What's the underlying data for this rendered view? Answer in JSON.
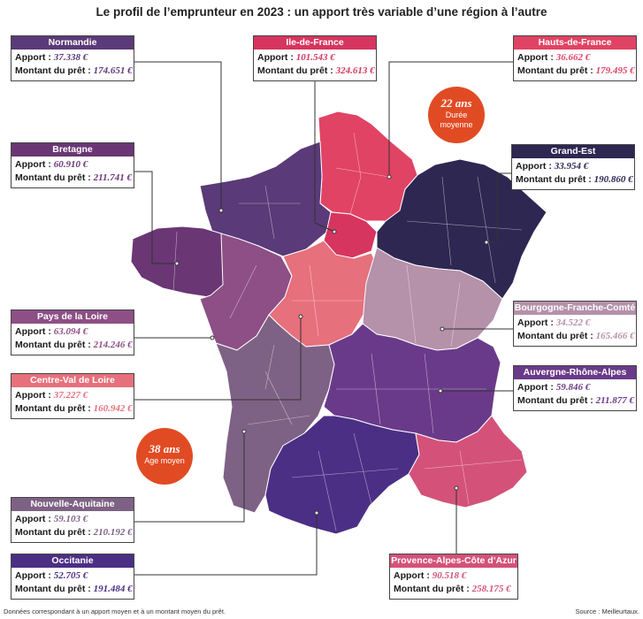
{
  "title": "Le profil de l’emprunteur en 2023 : un apport très variable d’une région à l’autre",
  "labels": {
    "apport": "Apport : ",
    "montant": "Montant du prêt : "
  },
  "regions": {
    "normandie": {
      "name": "Normandie",
      "apport": "37.338 €",
      "montant": "174.651 €",
      "color": "#5a3a78"
    },
    "idf": {
      "name": "Ile-de-France",
      "apport": "101.543 €",
      "montant": "324.613 €",
      "color": "#d6355f"
    },
    "hdf": {
      "name": "Hauts-de-France",
      "apport": "36.662 €",
      "montant": "179.495 €",
      "color": "#e14364"
    },
    "bretagne": {
      "name": "Bretagne",
      "apport": "60.910 €",
      "montant": "211.741 €",
      "color": "#6a3674"
    },
    "grandest": {
      "name": "Grand-Est",
      "apport": "33.954 €",
      "montant": "190.860 €",
      "color": "#2d2752"
    },
    "bfc": {
      "name": "Bourgogne-Franche-Comté",
      "apport": "34.522 €",
      "montant": "165.466 €",
      "color": "#b591aa"
    },
    "pdl": {
      "name": "Pays de la Loire",
      "apport": "63.094 €",
      "montant": "214.246 €",
      "color": "#8d4f85"
    },
    "ara": {
      "name": "Auvergne-Rhône-Alpes",
      "apport": "59.846 €",
      "montant": "211.877 €",
      "color": "#6a3a8a"
    },
    "cvl": {
      "name": "Centre-Val de Loire",
      "apport": "37.227 €",
      "montant": "160.942 €",
      "color": "#e6707c"
    },
    "naq": {
      "name": "Nouvelle-Aquitaine",
      "apport": "59.103 €",
      "montant": "210.192 €",
      "color": "#7e6285"
    },
    "paca": {
      "name": "Provence-Alpes-Côte d’Azur",
      "apport": "90.518 €",
      "montant": "258.175 €",
      "color": "#d4527a"
    },
    "occitanie": {
      "name": "Occitanie",
      "apport": "52.705 €",
      "montant": "191.484 €",
      "color": "#4b2f85"
    }
  },
  "badges": {
    "duree": {
      "value": "22 ans",
      "label_line1": "Durée",
      "label_line2": "moyenne"
    },
    "age": {
      "value": "38 ans",
      "label": "Age moyen"
    }
  },
  "footnote": "Données correspondant à un apport moyen et à un montant moyen du prêt.",
  "source": "Source : Meilleurtaux."
}
